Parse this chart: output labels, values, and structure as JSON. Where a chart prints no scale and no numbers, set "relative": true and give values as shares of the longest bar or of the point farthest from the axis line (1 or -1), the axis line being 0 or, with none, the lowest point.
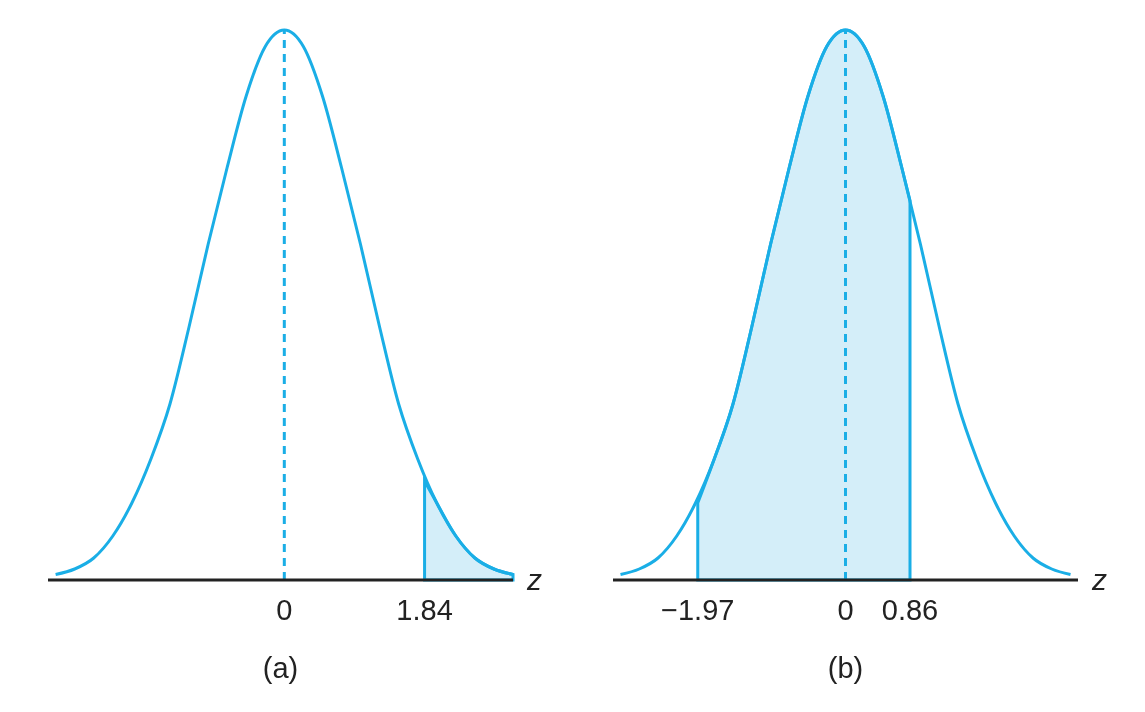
{
  "chart_data": [
    {
      "type": "line",
      "title": "(a)",
      "xlabel": "z",
      "relative": true,
      "xlim": [
        -3.1,
        3.0
      ],
      "xticks": [
        0,
        1.84
      ],
      "ref_lines": [
        {
          "axis": "x",
          "value": 0,
          "color": "#1aaee6",
          "line_style": "dashed"
        }
      ],
      "series": [
        {
          "color": "#1aaee6",
          "x": [
            -3,
            -2.75,
            -2.5,
            -2.25,
            -2,
            -1.75,
            -1.5,
            -1.25,
            -1,
            -0.75,
            -0.5,
            -0.25,
            0,
            0.25,
            0.5,
            0.75,
            1,
            1.25,
            1.5,
            1.75,
            2,
            2.25,
            2.5,
            2.75,
            3
          ],
          "values": [
            0.01,
            0.02,
            0.04,
            0.08,
            0.14,
            0.22,
            0.32,
            0.46,
            0.61,
            0.75,
            0.88,
            0.97,
            1,
            0.97,
            0.88,
            0.75,
            0.61,
            0.46,
            0.32,
            0.22,
            0.14,
            0.08,
            0.04,
            0.02,
            0.01
          ]
        },
        {
          "type": "area",
          "color": "#d4eef9",
          "x": [
            1.84,
            2,
            2.25,
            2.5,
            2.75,
            3
          ],
          "values": [
            0.18,
            0.14,
            0.08,
            0.04,
            0.02,
            0.01
          ]
        }
      ]
    },
    {
      "type": "line",
      "title": "(b)",
      "xlabel": "z",
      "relative": true,
      "xlim": [
        -3.1,
        3.1
      ],
      "xticks": [
        -1.97,
        0,
        0.86
      ],
      "ref_lines": [
        {
          "axis": "x",
          "value": 0,
          "color": "#1aaee6",
          "line_style": "dashed"
        }
      ],
      "series": [
        {
          "color": "#1aaee6",
          "x": [
            -3,
            -2.75,
            -2.5,
            -2.25,
            -2,
            -1.75,
            -1.5,
            -1.25,
            -1,
            -0.75,
            -0.5,
            -0.25,
            0,
            0.25,
            0.5,
            0.75,
            1,
            1.25,
            1.5,
            1.75,
            2,
            2.25,
            2.5,
            2.75,
            3
          ],
          "values": [
            0.01,
            0.02,
            0.04,
            0.08,
            0.14,
            0.22,
            0.32,
            0.46,
            0.61,
            0.75,
            0.88,
            0.97,
            1,
            0.97,
            0.88,
            0.75,
            0.61,
            0.46,
            0.32,
            0.22,
            0.14,
            0.08,
            0.04,
            0.02,
            0.01
          ]
        },
        {
          "type": "area",
          "color": "#d4eef9",
          "x": [
            -1.97,
            -1.75,
            -1.5,
            -1.25,
            -1,
            -0.75,
            -0.5,
            -0.25,
            0,
            0.25,
            0.5,
            0.75,
            0.86
          ],
          "values": [
            0.14,
            0.22,
            0.32,
            0.46,
            0.61,
            0.75,
            0.88,
            0.97,
            1,
            0.97,
            0.88,
            0.75,
            0.69
          ]
        }
      ]
    }
  ]
}
